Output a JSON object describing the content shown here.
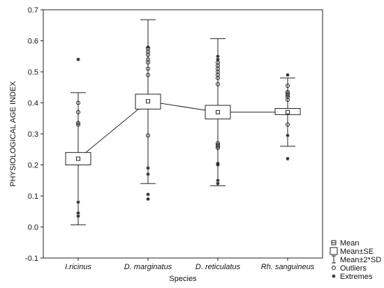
{
  "chart_data": {
    "type": "box",
    "xlabel": "Species",
    "ylabel": "PHYSIOLOGICAL AGE INDEX",
    "ylim": [
      -0.1,
      0.7
    ],
    "yticks": [
      "-0.1",
      "0.0",
      "0.1",
      "0.2",
      "0.3",
      "0.4",
      "0.5",
      "0.6",
      "0.7"
    ],
    "categories": [
      "I.ricinus",
      "D. marginatus",
      "D. reticulatus",
      "Rh. sanguineus"
    ],
    "grid": false,
    "legend_position": "bottom-right",
    "series": [
      {
        "name": "I.ricinus",
        "mean": 0.22,
        "se_low": 0.2,
        "se_high": 0.24,
        "sd2_low": 0.007,
        "sd2_high": 0.433,
        "outliers": [
          0.33,
          0.335,
          0.37,
          0.4
        ],
        "extremes": [
          0.54,
          0.08,
          0.045,
          0.035
        ]
      },
      {
        "name": "D. marginatus",
        "mean": 0.405,
        "se_low": 0.38,
        "se_high": 0.428,
        "sd2_low": 0.14,
        "sd2_high": 0.668,
        "outliers": [
          0.295,
          0.49,
          0.51,
          0.53,
          0.54,
          0.555,
          0.565,
          0.575
        ],
        "extremes": [
          0.58,
          0.19,
          0.17,
          0.105,
          0.09
        ]
      },
      {
        "name": "D. reticulatus",
        "mean": 0.37,
        "se_low": 0.348,
        "se_high": 0.392,
        "sd2_low": 0.133,
        "sd2_high": 0.607,
        "outliers": [
          0.255,
          0.26,
          0.265,
          0.27,
          0.46,
          0.48,
          0.49,
          0.5,
          0.51,
          0.52,
          0.53
        ],
        "extremes": [
          0.54,
          0.55,
          0.205,
          0.2,
          0.15,
          0.14
        ]
      },
      {
        "name": "Rh. sanguineus",
        "mean": 0.37,
        "se_low": 0.362,
        "se_high": 0.382,
        "sd2_low": 0.26,
        "sd2_high": 0.48,
        "outliers": [
          0.33,
          0.41,
          0.42,
          0.425,
          0.43,
          0.435,
          0.455
        ],
        "extremes": [
          0.49,
          0.295,
          0.22
        ]
      }
    ]
  },
  "legend": {
    "items": [
      {
        "symbol": "mean",
        "label": "Mean"
      },
      {
        "symbol": "box",
        "label": "Mean±SE"
      },
      {
        "symbol": "whisker",
        "label": "Mean±2*SD"
      },
      {
        "symbol": "outlier",
        "label": "Outliers"
      },
      {
        "symbol": "extreme",
        "label": "Extremes"
      }
    ]
  }
}
